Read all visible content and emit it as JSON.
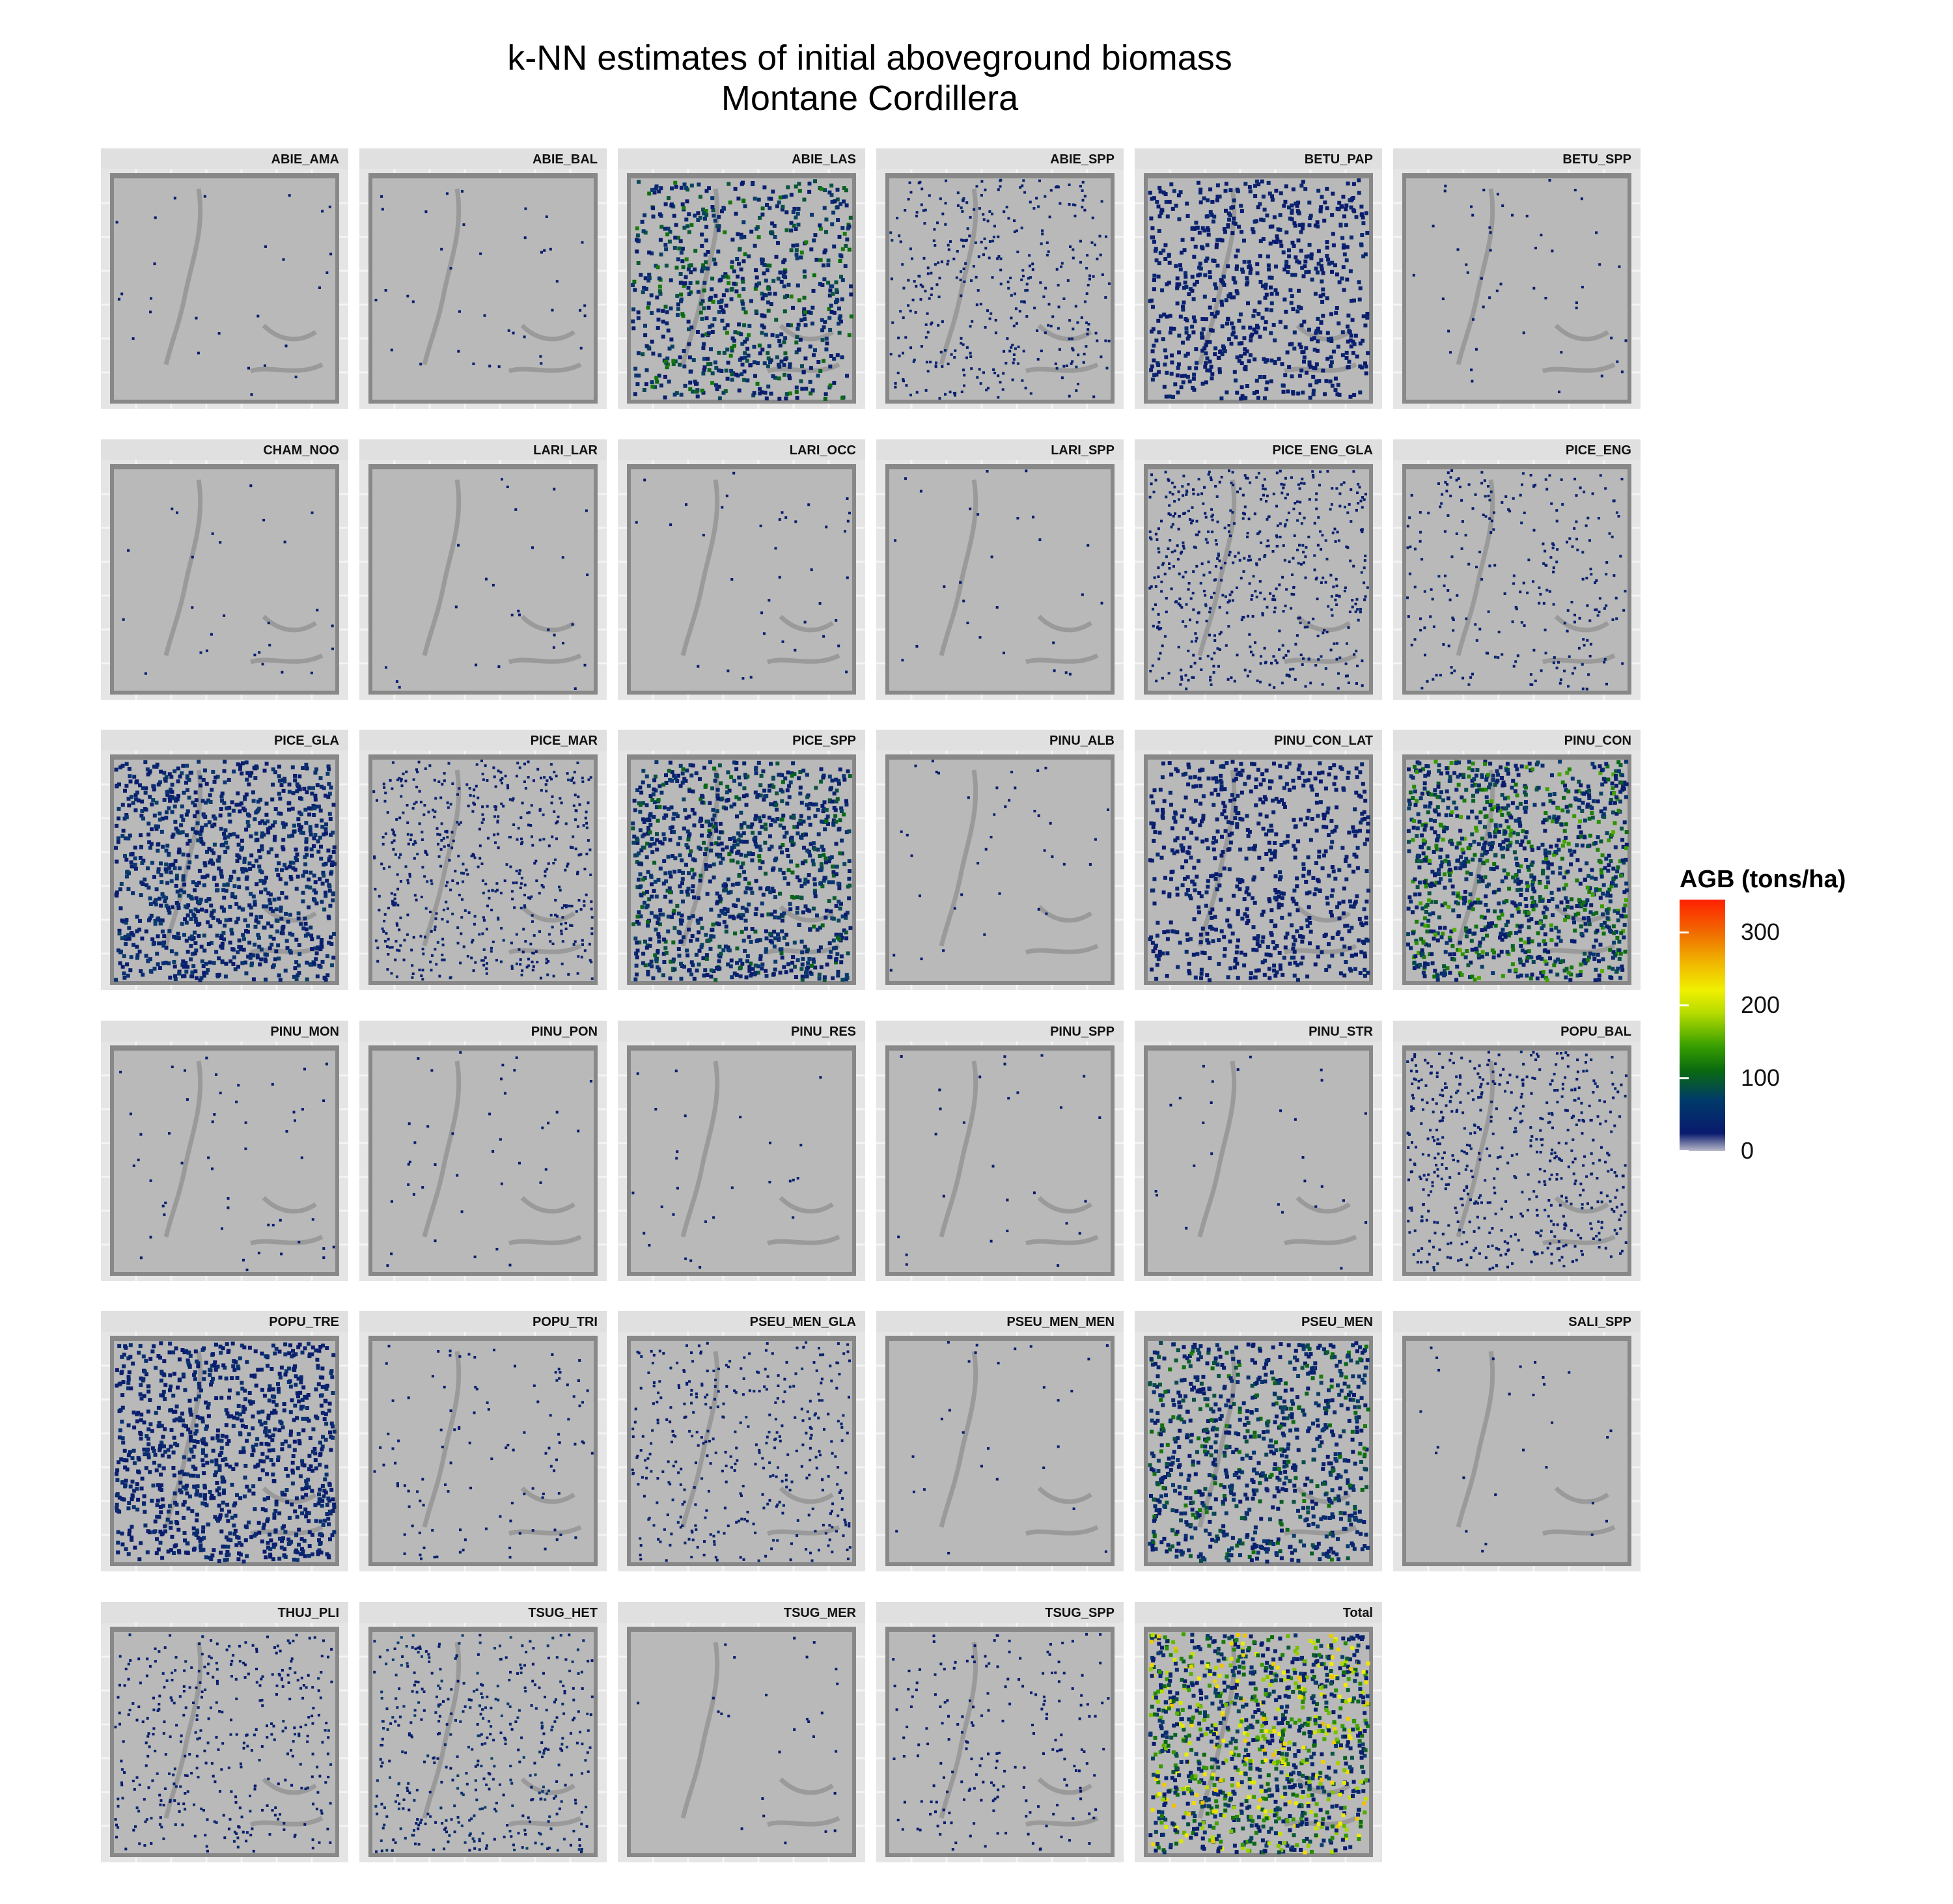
{
  "chart_data": {
    "type": "heatmap",
    "title_lines": [
      "k-NN estimates of initial aboveground biomass",
      "Montane Cordillera"
    ],
    "facets": [
      {
        "label": "ABIE_AMA",
        "coverage": 0.01,
        "max_level": 0.05
      },
      {
        "label": "ABIE_BAL",
        "coverage": 0.02,
        "max_level": 0.05
      },
      {
        "label": "ABIE_LAS",
        "coverage": 0.6,
        "max_level": 0.35
      },
      {
        "label": "ABIE_SPP",
        "coverage": 0.3,
        "max_level": 0.1
      },
      {
        "label": "BETU_PAP",
        "coverage": 0.6,
        "max_level": 0.1
      },
      {
        "label": "BETU_SPP",
        "coverage": 0.03,
        "max_level": 0.05
      },
      {
        "label": "CHAM_NOO",
        "coverage": 0.01,
        "max_level": 0.05
      },
      {
        "label": "LARI_LAR",
        "coverage": 0.01,
        "max_level": 0.05
      },
      {
        "label": "LARI_OCC",
        "coverage": 0.02,
        "max_level": 0.05
      },
      {
        "label": "LARI_SPP",
        "coverage": 0.01,
        "max_level": 0.05
      },
      {
        "label": "PICE_ENG_GLA",
        "coverage": 0.45,
        "max_level": 0.1
      },
      {
        "label": "PICE_ENG",
        "coverage": 0.2,
        "max_level": 0.1
      },
      {
        "label": "PICE_GLA",
        "coverage": 0.85,
        "max_level": 0.2
      },
      {
        "label": "PICE_MAR",
        "coverage": 0.45,
        "max_level": 0.1
      },
      {
        "label": "PICE_SPP",
        "coverage": 0.85,
        "max_level": 0.3
      },
      {
        "label": "PINU_ALB",
        "coverage": 0.02,
        "max_level": 0.05
      },
      {
        "label": "PINU_CON_LAT",
        "coverage": 0.55,
        "max_level": 0.1
      },
      {
        "label": "PINU_CON",
        "coverage": 0.95,
        "max_level": 0.45
      },
      {
        "label": "PINU_MON",
        "coverage": 0.03,
        "max_level": 0.05
      },
      {
        "label": "PINU_PON",
        "coverage": 0.02,
        "max_level": 0.05
      },
      {
        "label": "PINU_RES",
        "coverage": 0.01,
        "max_level": 0.05
      },
      {
        "label": "PINU_SPP",
        "coverage": 0.01,
        "max_level": 0.05
      },
      {
        "label": "PINU_STR",
        "coverage": 0.01,
        "max_level": 0.05
      },
      {
        "label": "POPU_BAL",
        "coverage": 0.45,
        "max_level": 0.1
      },
      {
        "label": "POPU_TRE",
        "coverage": 0.8,
        "max_level": 0.15
      },
      {
        "label": "POPU_TRI",
        "coverage": 0.08,
        "max_level": 0.05
      },
      {
        "label": "PSEU_MEN_GLA",
        "coverage": 0.3,
        "max_level": 0.1
      },
      {
        "label": "PSEU_MEN_MEN",
        "coverage": 0.01,
        "max_level": 0.05
      },
      {
        "label": "PSEU_MEN",
        "coverage": 0.75,
        "max_level": 0.35
      },
      {
        "label": "SALI_SPP",
        "coverage": 0.01,
        "max_level": 0.05
      },
      {
        "label": "THUJ_PLI",
        "coverage": 0.3,
        "max_level": 0.1
      },
      {
        "label": "TSUG_HET",
        "coverage": 0.35,
        "max_level": 0.2
      },
      {
        "label": "TSUG_MER",
        "coverage": 0.01,
        "max_level": 0.05
      },
      {
        "label": "TSUG_SPP",
        "coverage": 0.15,
        "max_level": 0.05
      },
      {
        "label": "Total",
        "coverage": 1.0,
        "max_level": 0.75
      }
    ],
    "legend": {
      "title": "AGB (tons/ha)",
      "ticks": [
        0,
        100,
        200,
        300
      ],
      "range": [
        0,
        345
      ],
      "colors": [
        "#b8b8c8",
        "#0a1a6e",
        "#0a6a10",
        "#b8dc00",
        "#f0f000",
        "#f07000",
        "#ff2000"
      ]
    },
    "colors": {
      "no_data": "#b9b9b9",
      "background_shadow": "#888888",
      "panel_bg": "#e5e5e5"
    }
  }
}
